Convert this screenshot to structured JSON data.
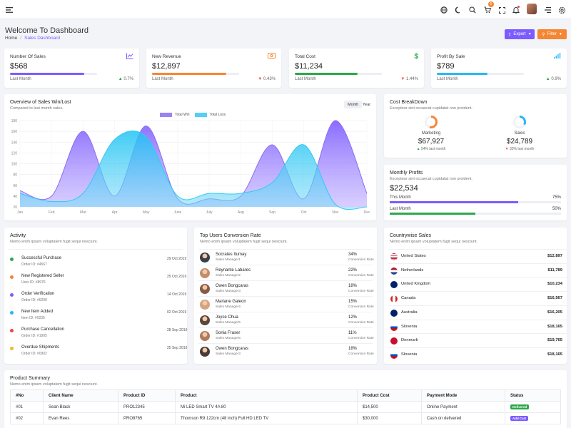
{
  "header": {
    "badge_count": "5",
    "icons": [
      "menu-icon",
      "globe-icon",
      "moon-icon",
      "search-icon",
      "cart-icon",
      "fullscreen-icon",
      "bell-icon",
      "avatar",
      "menu-right-icon",
      "gear-icon"
    ]
  },
  "page": {
    "title": "Welcome To Dashboard",
    "breadcrumb_home": "Home",
    "breadcrumb_sep": "/",
    "breadcrumb_current": "Sales Dashboard",
    "export_label": "Export",
    "filter_label": "Filter"
  },
  "stats": [
    {
      "label": "Number Of Sales",
      "value": "$568",
      "sub": "Last Month",
      "change": "0.7%",
      "trend": "up",
      "progress": 0.85,
      "color": "#7c5cff"
    },
    {
      "label": "New Revenue",
      "value": "$12,897",
      "sub": "Last Month",
      "change": "0.43%",
      "trend": "down",
      "progress": 0.85,
      "color": "#f58634"
    },
    {
      "label": "Total Cost",
      "value": "$11,234",
      "sub": "Last Month",
      "change": "1.44%",
      "trend": "down",
      "progress": 0.72,
      "color": "#2aa84a"
    },
    {
      "label": "Profit By Sale",
      "value": "$789",
      "sub": "Last Month",
      "change": "0.9%",
      "trend": "up",
      "progress": 0.58,
      "color": "#29b6f6"
    }
  ],
  "overview": {
    "title": "Overview of Sales Win/Lost",
    "subtitle": "Compared to last month sales.",
    "toggle_month": "Month",
    "toggle_year": "Year"
  },
  "chart_data": {
    "type": "area",
    "categories": [
      "Jan",
      "Feb",
      "Mar",
      "Apr",
      "May",
      "June",
      "July",
      "Aug",
      "Sep",
      "Oct",
      "Nov",
      "Dec"
    ],
    "series": [
      {
        "name": "Total Win",
        "color": "#8b6cf0",
        "values": [
          50,
          40,
          160,
          40,
          170,
          35,
          35,
          40,
          135,
          35,
          180,
          45
        ]
      },
      {
        "name": "Total Loss",
        "color": "#35c9f2",
        "values": [
          45,
          30,
          45,
          145,
          150,
          40,
          45,
          45,
          65,
          135,
          25,
          20
        ]
      }
    ],
    "ylim": [
      20,
      180
    ],
    "yticks": [
      20,
      40,
      60,
      80,
      100,
      120,
      140,
      160,
      180
    ],
    "grid": true,
    "legend": "top"
  },
  "cost": {
    "title": "Cost BreakDown",
    "subtitle": "Excepteur sint occaecat cupidatat non proident.",
    "items": [
      {
        "label": "Marketing",
        "value": "$67,927",
        "change": "54% last month",
        "trend": "up",
        "ratio": 0.54,
        "color": "#f58634"
      },
      {
        "label": "Sales",
        "value": "$24,789",
        "change": "33% last month",
        "trend": "down",
        "ratio": 0.33,
        "color": "#29b6f6"
      }
    ]
  },
  "monthly": {
    "title": "Monthly Profits",
    "subtitle": "Excepteur sint occaecat cupidatat non proident.",
    "value": "$22,534",
    "rows": [
      {
        "label": "This Month",
        "pct": "75%",
        "ratio": 0.75,
        "color": "#7c5cff"
      },
      {
        "label": "Last Month",
        "pct": "50%",
        "ratio": 0.5,
        "color": "#2aa84a"
      }
    ]
  },
  "activity": {
    "title": "Activity",
    "subtitle": "Nemo enim ipsam voluptatem fugit sequi nesciunt.",
    "items": [
      {
        "title": "Successful Purchase",
        "sub": "Order ID: #4567",
        "date": "29 Oct 2019",
        "color": "#2aa84a"
      },
      {
        "title": "New Registered Seller",
        "sub": "User ID: #8976",
        "date": "25 Oct 2019",
        "color": "#f58634"
      },
      {
        "title": "Order Verification",
        "sub": "Order ID: #6290",
        "date": "14 Oct 2019",
        "color": "#7c5cff"
      },
      {
        "title": "New Item Added",
        "sub": "Item ID: #0235",
        "date": "02 Oct 2019",
        "color": "#29b6f6"
      },
      {
        "title": "Purchase Cancellation",
        "sub": "Order ID: #1905",
        "date": "28 Sep 2019",
        "color": "#ef4444"
      },
      {
        "title": "Overdue Shipments",
        "sub": "Order ID: #0902",
        "date": "25 Sep 2019",
        "color": "#f5b72a"
      }
    ]
  },
  "users": {
    "title": "Top Users Conversion Rate",
    "subtitle": "Nemo enim ipsam voluptatem fugit sequi nesciunt.",
    "rows": [
      {
        "name": "Socrates Itumay",
        "role": "Sales Manager1",
        "pct": "34%",
        "label": "Conversion Rate"
      },
      {
        "name": "Reynante Labares",
        "role": "Sales Manager2",
        "pct": "22%",
        "label": "Conversion Rate"
      },
      {
        "name": "Owen Bongcaras",
        "role": "Sales Manager3",
        "pct": "18%",
        "label": "Conversion Rate"
      },
      {
        "name": "Mariane Galeon",
        "role": "Sales Manager4",
        "pct": "15%",
        "label": "Conversion Rate"
      },
      {
        "name": "Joyce Chua",
        "role": "Sales Manager5",
        "pct": "12%",
        "label": "Conversion Rate"
      },
      {
        "name": "Sonia Fraser",
        "role": "Sales Manager6",
        "pct": "11%",
        "label": "Conversion Rate"
      },
      {
        "name": "Owen Bongcaras",
        "role": "Sales Manager3",
        "pct": "18%",
        "label": "Conversion Rate"
      }
    ]
  },
  "countries": {
    "title": "Countrywise Sales",
    "subtitle": "Nemo enim ipsam voluptatem fugit sequi nesciunt.",
    "rows": [
      {
        "name": "United States",
        "value": "$12,897",
        "flag": "us-flag"
      },
      {
        "name": "Netherlands",
        "value": "$11,789",
        "flag": "nl-flag"
      },
      {
        "name": "United Kingdom",
        "value": "$10,234",
        "flag": "uk-flag"
      },
      {
        "name": "Canada",
        "value": "$16,567",
        "flag": "ca-flag"
      },
      {
        "name": "Australia",
        "value": "$16,205",
        "flag": "au-flag"
      },
      {
        "name": "Slovenia",
        "value": "$18,165",
        "flag": "si-flag"
      },
      {
        "name": "Denmark",
        "value": "$19,765",
        "flag": "dk-flag"
      },
      {
        "name": "Slovenia",
        "value": "$18,165",
        "flag": "si-flag"
      }
    ]
  },
  "products": {
    "title": "Product Summary",
    "subtitle": "Nemo enim ipsam voluptatem fugit sequi nesciunt.",
    "headers": [
      "#No",
      "Client Name",
      "Product ID",
      "Product",
      "Product Cost",
      "Payment Mode",
      "Status"
    ],
    "rows": [
      {
        "no": "#01",
        "client": "Sean Black",
        "pid": "PRO12345",
        "product": "Mi LED Smart TV 4A 80",
        "cost": "$14,500",
        "mode": "Online Payment",
        "status": "Delivered",
        "status_color": "#2aa84a"
      },
      {
        "no": "#02",
        "client": "Evan Rees",
        "pid": "PRO8765",
        "product": "Thomson R9 122cm (48 inch) Full HD LED TV",
        "cost": "$30,000",
        "mode": "Cash on delivered",
        "status": "Add Cart",
        "status_color": "#7c5cff"
      }
    ]
  }
}
